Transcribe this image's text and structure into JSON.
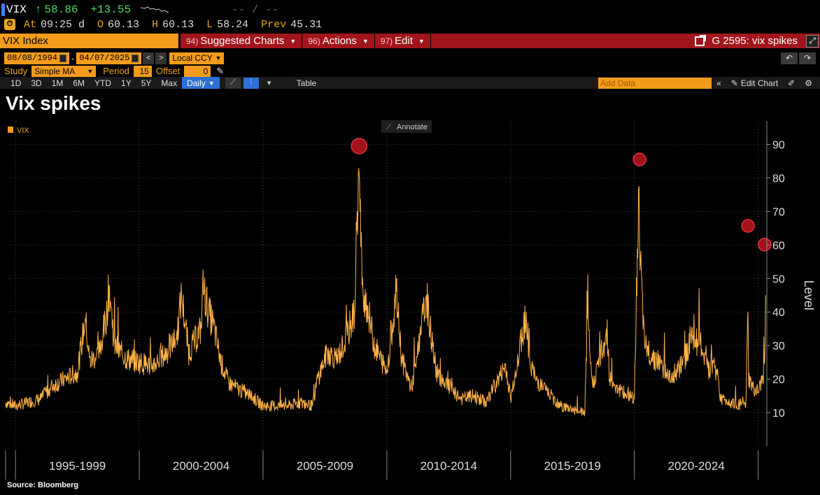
{
  "ticker": {
    "symbol": "VIX",
    "arrow": "↑",
    "last": "58.86",
    "change": "+13.55",
    "dashes": "-- / --"
  },
  "quote": {
    "at_label": "At",
    "time": "09:25 d",
    "open_label": "O",
    "open": "60.13",
    "high_label": "H",
    "high": "60.13",
    "low_label": "L",
    "low": "58.24",
    "prev_label": "Prev",
    "prev": "45.31"
  },
  "menubar": {
    "index_name": "VIX Index",
    "items": [
      {
        "num": "94)",
        "label": "Suggested Charts"
      },
      {
        "num": "96)",
        "label": "Actions"
      },
      {
        "num": "97)",
        "label": "Edit"
      }
    ],
    "gtitle": "G 2595: vix spikes"
  },
  "range": {
    "start": "08/08/1994",
    "end": "04/07/2025",
    "currency": "Local CCY"
  },
  "study": {
    "study_label": "Study",
    "study_value": "Simple MA",
    "period_label": "Period",
    "period_value": "15",
    "offset_label": "Offset",
    "offset_value": "0"
  },
  "toolbar": {
    "periods": [
      "1D",
      "3D",
      "1M",
      "6M",
      "YTD",
      "1Y",
      "5Y",
      "Max"
    ],
    "frequency": "Daily",
    "table_label": "Table",
    "add_data_placeholder": "Add Data",
    "edit_chart_label": "Edit Chart"
  },
  "title": "Vix spikes",
  "source": "Source: Bloomberg",
  "annotate_label": "Annotate",
  "colors": {
    "orange": "#f49b1b",
    "line": "#ffb347",
    "red_bar": "#a1151c",
    "spike_marker": "#b3141d",
    "active_blue": "#2d6fd6"
  },
  "chart_data": {
    "type": "line",
    "legend": [
      "VIX"
    ],
    "legend_position": "top-left",
    "ylabel": "Level",
    "yticks": [
      10,
      20,
      30,
      40,
      50,
      60,
      70,
      80,
      90
    ],
    "ylim": [
      0,
      97
    ],
    "xlim": [
      1994.6,
      2025.35
    ],
    "x_period_labels": [
      "1995-1999",
      "2000-2004",
      "2005-2009",
      "2010-2014",
      "2015-2019",
      "2020-2024"
    ],
    "x_period_bounds": [
      1995,
      2000,
      2005,
      2010,
      2015,
      2020,
      2025
    ],
    "grid": true,
    "series": [
      {
        "name": "VIX",
        "x": [
          1994.6,
          1995.0,
          1995.5,
          1996.0,
          1996.5,
          1997.0,
          1997.5,
          1997.82,
          1998.0,
          1998.4,
          1998.7,
          1998.78,
          1999.0,
          1999.5,
          2000.0,
          2000.5,
          2001.0,
          2001.5,
          2001.71,
          2002.0,
          2002.5,
          2002.56,
          2002.8,
          2003.0,
          2003.3,
          2003.6,
          2004.0,
          2004.5,
          2005.0,
          2005.5,
          2006.0,
          2006.5,
          2007.0,
          2007.2,
          2007.6,
          2008.0,
          2008.4,
          2008.7,
          2008.8,
          2008.88,
          2009.0,
          2009.2,
          2009.5,
          2010.0,
          2010.38,
          2010.6,
          2011.0,
          2011.6,
          2011.7,
          2012.0,
          2012.5,
          2013.0,
          2013.5,
          2014.0,
          2014.8,
          2015.0,
          2015.63,
          2015.7,
          2016.0,
          2016.5,
          2017.0,
          2017.5,
          2018.0,
          2018.1,
          2018.3,
          2018.9,
          2019.0,
          2019.5,
          2020.0,
          2020.17,
          2020.21,
          2020.4,
          2020.6,
          2021.0,
          2021.5,
          2022.0,
          2022.3,
          2022.7,
          2023.0,
          2023.2,
          2023.5,
          2024.0,
          2024.5,
          2024.59,
          2024.62,
          2024.8,
          2025.0,
          2025.18,
          2025.26,
          2025.3
        ],
        "values": [
          13,
          12,
          13,
          14,
          18,
          20,
          22,
          38,
          25,
          28,
          40,
          48,
          30,
          26,
          25,
          24,
          27,
          32,
          45,
          28,
          35,
          48,
          40,
          36,
          25,
          19,
          17,
          15,
          12,
          12,
          12,
          13,
          12,
          20,
          28,
          26,
          33,
          40,
          70,
          81,
          48,
          42,
          30,
          22,
          46,
          26,
          17,
          45,
          38,
          22,
          18,
          14,
          15,
          13,
          24,
          14,
          40,
          28,
          20,
          16,
          12,
          11,
          10,
          38,
          18,
          34,
          20,
          16,
          14,
          77,
          60,
          30,
          28,
          25,
          20,
          25,
          33,
          30,
          22,
          26,
          14,
          13,
          12,
          40,
          20,
          17,
          16,
          20,
          25,
          45
        ]
      }
    ],
    "annotations": [
      {
        "type": "spike-marker",
        "x": 2008.88,
        "y": 89.5
      },
      {
        "type": "spike-marker",
        "x": 2020.21,
        "y": 85.5
      },
      {
        "type": "spike-marker",
        "x": 2024.59,
        "y": 65.7
      },
      {
        "type": "spike-marker",
        "x": 2025.26,
        "y": 60.1
      }
    ]
  }
}
